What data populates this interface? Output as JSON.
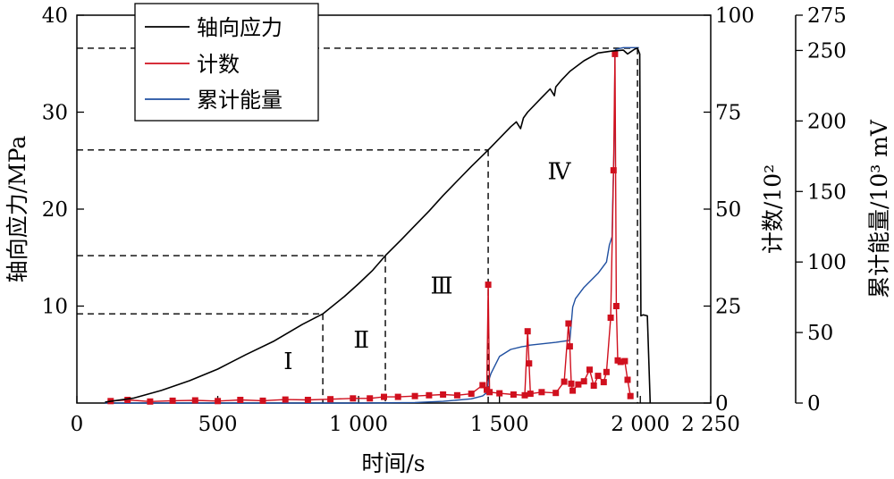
{
  "chart_data": {
    "type": "line",
    "xlabel": "时间/s",
    "ylabel_left": "轴向应力/MPa",
    "ylabel_right1": "计数/10²",
    "ylabel_right2": "累计能量/10³ mV",
    "xlim": [
      0,
      2250
    ],
    "ylim_left": [
      0,
      40
    ],
    "ylim_right1": [
      0,
      100
    ],
    "ylim_right2": [
      0,
      275
    ],
    "x_ticks": [
      0,
      500,
      1000,
      1500,
      2000,
      2250
    ],
    "x_tick_labels": [
      "0",
      "500",
      "1 000",
      "1 500",
      "2 000",
      "2 250"
    ],
    "y_left_ticks": [
      10,
      20,
      30,
      40
    ],
    "y_left_tick_labels": [
      "10",
      "20",
      "30",
      "40"
    ],
    "y_right1_ticks": [
      0,
      25,
      50,
      75,
      100
    ],
    "y_right1_tick_labels": [
      "0",
      "25",
      "50",
      "75",
      "100"
    ],
    "y_right2_ticks": [
      0,
      50,
      100,
      150,
      200,
      250,
      275
    ],
    "y_right2_tick_labels": [
      "0",
      "50",
      "100",
      "150",
      "200",
      "250",
      "275"
    ],
    "legend": {
      "position": "top-left",
      "entries": [
        {
          "label": "轴向应力",
          "color": "#000000"
        },
        {
          "label": "计数",
          "color": "#d0101e"
        },
        {
          "label": "累计能量",
          "color": "#1f4fa0"
        }
      ]
    },
    "stages": [
      {
        "label": "Ⅰ",
        "x": 750,
        "y": 3.5
      },
      {
        "label": "Ⅱ",
        "x": 1010,
        "y": 5.7
      },
      {
        "label": "Ⅲ",
        "x": 1295,
        "y": 11.3
      },
      {
        "label": "Ⅳ",
        "x": 1712,
        "y": 23.1
      }
    ],
    "stage_boundaries": [
      {
        "x": 873,
        "stress": 9.2
      },
      {
        "x": 1095,
        "stress": 15.2
      },
      {
        "x": 1460,
        "stress": 26.1
      },
      {
        "x": 1990,
        "stress": 36.6
      }
    ],
    "series": [
      {
        "name": "轴向应力",
        "axis": "left",
        "color": "#000000",
        "x": [
          100,
          200,
          300,
          400,
          500,
          600,
          700,
          800,
          873,
          950,
          1000,
          1050,
          1095,
          1150,
          1200,
          1250,
          1300,
          1350,
          1400,
          1460,
          1500,
          1540,
          1560,
          1575,
          1585,
          1600,
          1650,
          1680,
          1695,
          1700,
          1720,
          1750,
          1800,
          1850,
          1900,
          1940,
          1955,
          1965,
          1980,
          1990,
          1998,
          2002,
          2010,
          2025,
          2035
        ],
        "y": [
          0.1,
          0.5,
          1.3,
          2.3,
          3.5,
          5.0,
          6.4,
          8.1,
          9.2,
          11.0,
          12.3,
          13.7,
          15.2,
          16.8,
          18.3,
          19.8,
          21.4,
          22.9,
          24.4,
          26.1,
          27.3,
          28.5,
          29.0,
          28.3,
          29.4,
          30.0,
          31.5,
          32.4,
          31.7,
          32.6,
          33.3,
          34.2,
          35.3,
          36.1,
          36.3,
          36.4,
          36.0,
          36.2,
          36.5,
          36.6,
          36.0,
          9.0,
          9.1,
          9.0,
          0.0
        ]
      },
      {
        "name": "计数",
        "axis": "right1",
        "color": "#d0101e",
        "x": [
          120,
          180,
          260,
          340,
          420,
          500,
          580,
          660,
          740,
          820,
          900,
          980,
          1040,
          1090,
          1140,
          1200,
          1250,
          1300,
          1350,
          1400,
          1440,
          1455,
          1460,
          1465,
          1500,
          1550,
          1590,
          1600,
          1605,
          1610,
          1650,
          1700,
          1730,
          1745,
          1750,
          1755,
          1760,
          1780,
          1800,
          1820,
          1835,
          1850,
          1870,
          1880,
          1895,
          1905,
          1910,
          1915,
          1920,
          1930,
          1945,
          1955,
          1965
        ],
        "y": [
          0.5,
          0.8,
          0.4,
          0.6,
          0.7,
          0.5,
          0.8,
          0.6,
          0.9,
          0.8,
          1.0,
          1.2,
          1.2,
          1.6,
          1.6,
          1.8,
          2.0,
          2.2,
          2.0,
          2.4,
          4.6,
          3.4,
          30.5,
          2.8,
          2.5,
          2.2,
          2.0,
          18.5,
          10.2,
          2.4,
          2.8,
          2.6,
          5.5,
          20.5,
          14.6,
          5.0,
          3.2,
          4.8,
          5.6,
          8.6,
          4.5,
          7.0,
          5.4,
          8.0,
          22.0,
          60.0,
          90.0,
          25.0,
          11.0,
          10.6,
          10.8,
          6.0,
          1.8
        ]
      },
      {
        "name": "累计能量",
        "axis": "right2",
        "color": "#1f4fa0",
        "x": [
          100,
          1000,
          1200,
          1300,
          1400,
          1440,
          1450,
          1456,
          1460,
          1470,
          1500,
          1540,
          1580,
          1600,
          1605,
          1700,
          1750,
          1760,
          1770,
          1800,
          1850,
          1880,
          1890,
          1900,
          1902,
          1908,
          1910,
          1915,
          1940,
          1995
        ],
        "y": [
          0.0,
          0.0,
          0.4,
          1.2,
          3.0,
          5.0,
          6.5,
          7.5,
          15.0,
          21.0,
          33.0,
          38.0,
          40.0,
          40.5,
          41.0,
          43.0,
          44.5,
          68.0,
          74.0,
          82.0,
          92.0,
          100.0,
          112.0,
          118.0,
          140.0,
          190.0,
          250.0,
          251.0,
          252.0,
          252.0
        ]
      }
    ]
  }
}
